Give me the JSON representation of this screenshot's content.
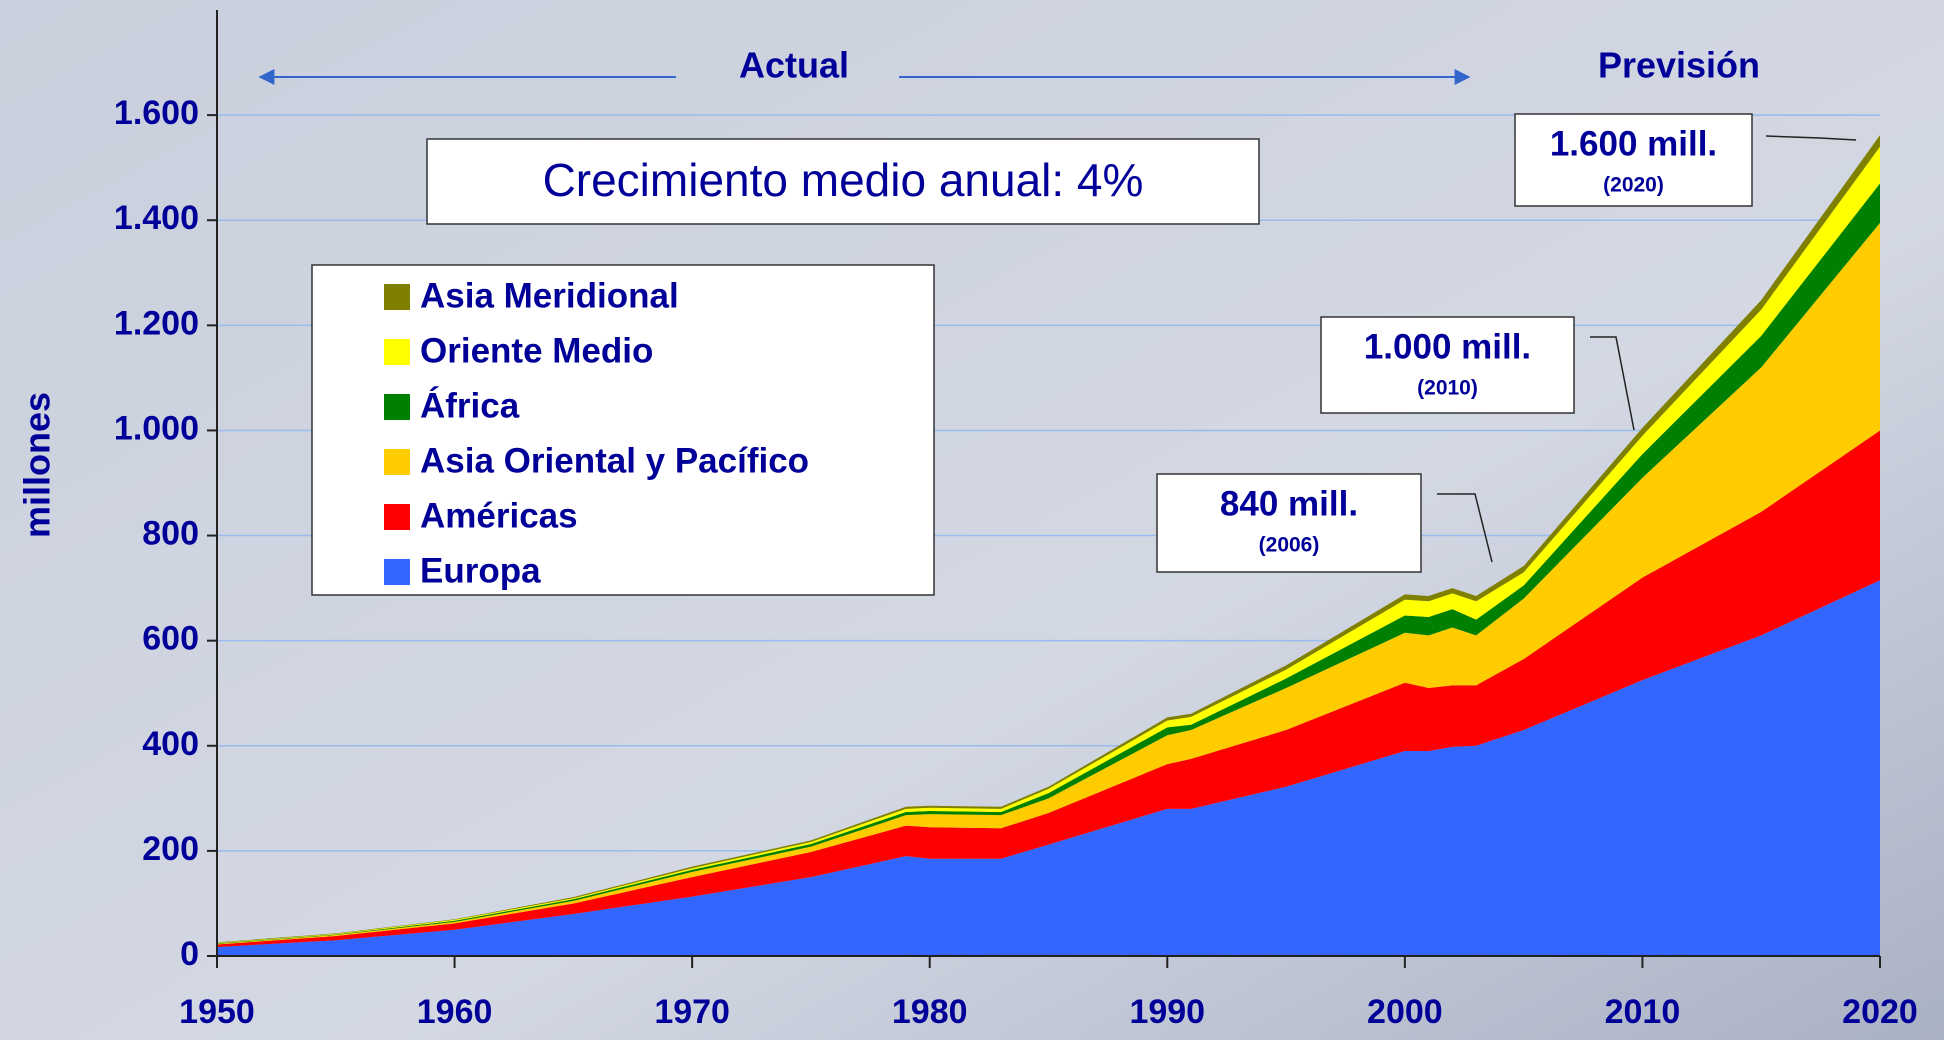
{
  "chart_data": {
    "type": "stacked_area",
    "y_label": "millones",
    "header_left": "Actual",
    "header_right": "Previsión",
    "growth_note": "Crecimiento medio anual: 4%",
    "annotations": [
      {
        "text": "1.600 mill.",
        "sub": "(2020)"
      },
      {
        "text": "1.000 mill.",
        "sub": "(2010)"
      },
      {
        "text": "840 mill.",
        "sub": "(2006)"
      }
    ],
    "x": [
      1950,
      1955,
      1960,
      1965,
      1970,
      1975,
      1979,
      1980,
      1983,
      1985,
      1990,
      1991,
      1995,
      2000,
      2001,
      2002,
      2003,
      2005,
      2010,
      2015,
      2020
    ],
    "series": [
      {
        "name": "Asia Meridional",
        "color": "#808000",
        "values": [
          1,
          1,
          1,
          2,
          3,
          3,
          4,
          4,
          4,
          4,
          6,
          6,
          8,
          10,
          10,
          10,
          10,
          12,
          15,
          18,
          22
        ]
      },
      {
        "name": "Oriente Medio",
        "color": "#ffff00",
        "values": [
          1,
          1,
          2,
          2,
          3,
          4,
          6,
          6,
          6,
          8,
          13,
          15,
          17,
          30,
          30,
          30,
          35,
          25,
          35,
          50,
          70
        ]
      },
      {
        "name": "África",
        "color": "#008000",
        "values": [
          1,
          1,
          2,
          3,
          4,
          5,
          6,
          6,
          6,
          10,
          15,
          10,
          18,
          33,
          35,
          35,
          30,
          25,
          45,
          60,
          75
        ]
      },
      {
        "name": "Asia Oriental y Pacífico",
        "color": "#ffcc00",
        "values": [
          1,
          2,
          3,
          5,
          10,
          10,
          20,
          25,
          25,
          28,
          55,
          55,
          80,
          95,
          100,
          110,
          95,
          115,
          190,
          275,
          395
        ]
      },
      {
        "name": "Américas",
        "color": "#ff0000",
        "values": [
          5,
          8,
          12,
          20,
          37,
          48,
          58,
          60,
          58,
          60,
          85,
          95,
          108,
          130,
          120,
          117,
          115,
          135,
          195,
          235,
          285
        ]
      },
      {
        "name": "Europa",
        "color": "#3366ff",
        "values": [
          17,
          30,
          50,
          80,
          113,
          150,
          190,
          185,
          185,
          212,
          280,
          280,
          322,
          390,
          390,
          398,
          400,
          430,
          525,
          610,
          715
        ]
      }
    ],
    "xlim": [
      1950,
      2020
    ],
    "xticks": [
      1950,
      1960,
      1970,
      1980,
      1990,
      2000,
      2010,
      2020
    ],
    "ylim": [
      0,
      1800
    ],
    "yticks": [
      0,
      {
        "value": 200,
        "label": "200"
      },
      {
        "value": 400,
        "label": "400"
      },
      {
        "value": 600,
        "label": "600"
      },
      {
        "value": 800,
        "label": "800"
      },
      {
        "value": 1000,
        "label": "1.000"
      },
      {
        "value": 1200,
        "label": "1.200"
      },
      {
        "value": 1400,
        "label": "1.400"
      },
      {
        "value": 1600,
        "label": "1.600"
      }
    ],
    "grid": true
  }
}
